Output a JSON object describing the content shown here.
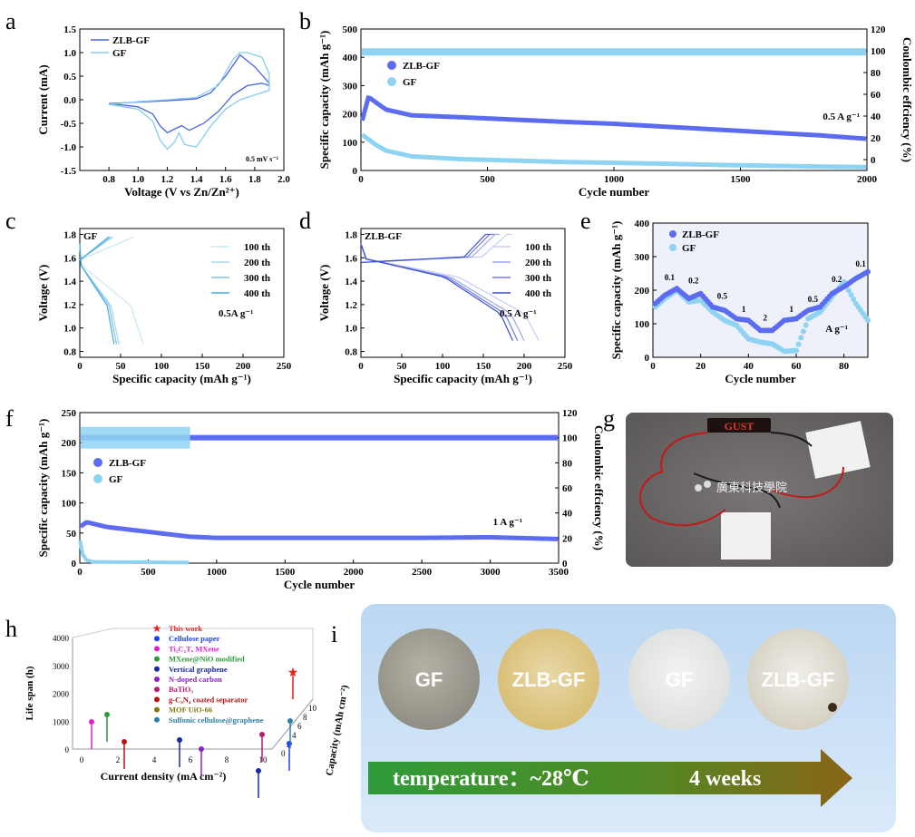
{
  "colors": {
    "zlb": "#4a64e6",
    "gf": "#86cdef",
    "zlb_dot": "#5b6cf0",
    "gf_dot": "#8fd3f2",
    "photo_bg": "#6e6a6a",
    "arrow_start": "#2f9b3a",
    "arrow_end": "#8a6418"
  },
  "panel_labels": {
    "a": "a",
    "b": "b",
    "c": "c",
    "d": "d",
    "e": "e",
    "f": "f",
    "g": "g",
    "h": "h",
    "i": "i"
  },
  "chart_data": [
    {
      "panel": "a",
      "type": "line",
      "xlabel": "Voltage (V vs Zn/Zn²⁺)",
      "ylabel": "Current (mA)",
      "xlim": [
        0.6,
        2.0
      ],
      "ylim": [
        -1.5,
        1.5
      ],
      "xticks": [
        "0.8",
        "1.0",
        "1.2",
        "1.4",
        "1.6",
        "1.8",
        "2.0"
      ],
      "yticks": [
        "-1.5",
        "-1.0",
        "-0.5",
        "0.0",
        "0.5",
        "1.0",
        "1.5"
      ],
      "annotation": "0.5 mV s⁻¹",
      "series": [
        {
          "name": "ZLB-GF",
          "x": [
            0.8,
            1.0,
            1.1,
            1.15,
            1.2,
            1.25,
            1.3,
            1.35,
            1.45,
            1.55,
            1.65,
            1.75,
            1.85,
            1.9,
            1.9,
            1.8,
            1.7,
            1.6,
            1.5,
            1.4,
            1.2,
            1.0,
            0.8
          ],
          "y": [
            -0.08,
            -0.15,
            -0.3,
            -0.55,
            -0.7,
            -0.62,
            -0.55,
            -0.65,
            -0.5,
            -0.25,
            0.1,
            0.3,
            0.35,
            0.3,
            0.35,
            0.7,
            0.95,
            0.5,
            0.15,
            0.02,
            -0.02,
            -0.05,
            -0.08
          ]
        },
        {
          "name": "GF",
          "x": [
            0.8,
            1.0,
            1.1,
            1.15,
            1.2,
            1.25,
            1.28,
            1.32,
            1.4,
            1.5,
            1.6,
            1.7,
            1.8,
            1.9,
            1.9,
            1.85,
            1.75,
            1.7,
            1.65,
            1.55,
            1.4,
            1.2,
            1.0,
            0.8
          ],
          "y": [
            -0.1,
            -0.2,
            -0.45,
            -0.85,
            -1.05,
            -0.9,
            -0.7,
            -0.95,
            -1.0,
            -0.55,
            -0.2,
            0.0,
            0.1,
            0.2,
            0.55,
            0.9,
            1.0,
            1.0,
            0.85,
            0.3,
            0.05,
            0.0,
            -0.04,
            -0.1
          ]
        }
      ]
    },
    {
      "panel": "b",
      "type": "scatter",
      "xlabel": "Cycle number",
      "ylabel": "Specific capacity (mAh g⁻¹)",
      "y2label": "Coulombic effciency (%)",
      "xlim": [
        0,
        2000
      ],
      "ylim": [
        0,
        500
      ],
      "y2lim": [
        -10,
        120
      ],
      "xticks": [
        "0",
        "500",
        "1000",
        "1500",
        "2000"
      ],
      "yticks": [
        "0",
        "100",
        "200",
        "300",
        "400",
        "500"
      ],
      "y2ticks": [
        "0",
        "20",
        "40",
        "60",
        "80",
        "100",
        "120"
      ],
      "annotation": "0.5 A g⁻¹",
      "series": [
        {
          "name": "ZLB-GF",
          "x": [
            0,
            30,
            60,
            100,
            200,
            400,
            600,
            800,
            1000,
            1200,
            1400,
            1600,
            1800,
            2000
          ],
          "y": [
            160,
            260,
            240,
            215,
            195,
            188,
            180,
            172,
            165,
            155,
            145,
            135,
            125,
            112
          ]
        },
        {
          "name": "GF",
          "x": [
            0,
            30,
            60,
            100,
            200,
            400,
            600,
            800,
            1000,
            1200,
            1400,
            1600,
            1800,
            2000
          ],
          "y": [
            130,
            110,
            90,
            70,
            50,
            40,
            35,
            30,
            27,
            24,
            20,
            17,
            14,
            12
          ]
        },
        {
          "name": "CE",
          "x": [
            0,
            2000
          ],
          "y": [
            99,
            99
          ]
        }
      ]
    },
    {
      "panel": "c",
      "type": "line",
      "xlabel": "Specific capacity (mAh g⁻¹)",
      "ylabel": "Voltage (V)",
      "xlim": [
        0,
        250
      ],
      "ylim": [
        0.75,
        1.85
      ],
      "xticks": [
        "0",
        "50",
        "100",
        "150",
        "200",
        "250"
      ],
      "yticks": [
        "0.8",
        "1.0",
        "1.2",
        "1.4",
        "1.6",
        "1.8"
      ],
      "title": "GF",
      "annotation": "0.5A g⁻¹",
      "legend": [
        "100 th",
        "200 th",
        "300 th",
        "400 th"
      ],
      "series_end_capacity": [
        78,
        48,
        45,
        42
      ]
    },
    {
      "panel": "d",
      "type": "line",
      "xlabel": "Specific capacity (mAh g⁻¹)",
      "ylabel": "Voltage (V)",
      "xlim": [
        0,
        250
      ],
      "ylim": [
        0.75,
        1.85
      ],
      "xticks": [
        "0",
        "50",
        "100",
        "150",
        "200",
        "250"
      ],
      "yticks": [
        "0.8",
        "1.0",
        "1.2",
        "1.4",
        "1.6",
        "1.8"
      ],
      "title": "ZLB-GF",
      "annotation": "0.5 A g⁻¹",
      "legend": [
        "100 th",
        "200 th",
        "300 th",
        "400 th"
      ],
      "series_end_capacity": [
        218,
        200,
        192,
        186
      ]
    },
    {
      "panel": "e",
      "type": "scatter",
      "xlabel": "Cycle number",
      "ylabel": "Specific capacity (mAh g⁻¹)",
      "xlim": [
        0,
        90
      ],
      "ylim": [
        0,
        400
      ],
      "xticks": [
        "0",
        "20",
        "40",
        "60",
        "80"
      ],
      "yticks": [
        "0",
        "100",
        "200",
        "300",
        "400"
      ],
      "rate_labels": [
        "0.1",
        "0.2",
        "0.5",
        "1",
        "2",
        "1",
        "0.5",
        "0.2",
        "0.1"
      ],
      "unit_label": "A g⁻¹",
      "series": [
        {
          "name": "ZLB-GF",
          "x": [
            1,
            5,
            10,
            15,
            20,
            25,
            30,
            35,
            40,
            45,
            50,
            55,
            60,
            65,
            70,
            75,
            80,
            85,
            90
          ],
          "y": [
            160,
            185,
            205,
            175,
            190,
            150,
            140,
            115,
            110,
            80,
            80,
            110,
            115,
            140,
            150,
            190,
            210,
            235,
            255
          ]
        },
        {
          "name": "GF",
          "x": [
            1,
            5,
            10,
            15,
            20,
            25,
            30,
            35,
            40,
            45,
            50,
            55,
            60,
            65,
            70,
            75,
            80,
            85,
            90
          ],
          "y": [
            150,
            175,
            200,
            165,
            170,
            135,
            110,
            95,
            55,
            45,
            40,
            18,
            20,
            115,
            135,
            180,
            225,
            160,
            110
          ]
        }
      ]
    },
    {
      "panel": "f",
      "type": "scatter",
      "xlabel": "Cycle number",
      "ylabel": "Specific capacity (mAh g⁻¹)",
      "y2label": "Coulombic effciency (%)",
      "xlim": [
        0,
        3500
      ],
      "ylim": [
        0,
        250
      ],
      "y2lim": [
        0,
        120
      ],
      "xticks": [
        "0",
        "500",
        "1000",
        "1500",
        "2000",
        "2500",
        "3000",
        "3500"
      ],
      "yticks": [
        "0",
        "50",
        "100",
        "150",
        "200",
        "250"
      ],
      "y2ticks": [
        "0",
        "20",
        "40",
        "60",
        "80",
        "100",
        "120"
      ],
      "annotation": "1 A g⁻¹",
      "series": [
        {
          "name": "ZLB-GF",
          "x": [
            0,
            50,
            200,
            500,
            800,
            1000,
            1500,
            2000,
            2500,
            3000,
            3500
          ],
          "y": [
            60,
            68,
            60,
            52,
            44,
            42,
            42,
            42,
            42,
            43,
            40
          ]
        },
        {
          "name": "GF",
          "x": [
            0,
            20,
            50,
            100,
            800
          ],
          "y": [
            40,
            15,
            5,
            2,
            1
          ]
        },
        {
          "name": "CE ZLB-GF",
          "x": [
            0,
            3500
          ],
          "y": [
            100,
            100
          ]
        },
        {
          "name": "CE GF",
          "x": [
            0,
            800
          ],
          "y": [
            95,
            95
          ]
        }
      ]
    },
    {
      "panel": "h",
      "type": "scatter",
      "xlabel": "Current density (mA cm⁻²)",
      "ylabel": "Life span (h)",
      "zlabel": "Capacity (mAh cm⁻²)",
      "yticks": [
        "0",
        "1000",
        "2000",
        "3000",
        "4000"
      ],
      "xticks": [
        "0",
        "2",
        "4",
        "6",
        "8",
        "10"
      ],
      "zticks": [
        "0",
        "2",
        "4",
        "6",
        "8",
        "10"
      ],
      "legend": [
        {
          "label": "This work",
          "color": "#e8211d",
          "marker": "star"
        },
        {
          "label": "Cellulose paper",
          "color": "#1f3fff",
          "marker": "dot"
        },
        {
          "label": "Ti₃C₂Tₓ MXene",
          "color": "#e020d8",
          "marker": "dot"
        },
        {
          "label": "MXene@NiO modified",
          "color": "#2e9b3a",
          "marker": "dot"
        },
        {
          "label": "Vertical graphene",
          "color": "#1a2aa0",
          "marker": "dot"
        },
        {
          "label": "N-doped carbon",
          "color": "#8a24c8",
          "marker": "dot"
        },
        {
          "label": "BaTiO₃",
          "color": "#b21e74",
          "marker": "dot"
        },
        {
          "label": "g-C₃N₄ coated separator",
          "color": "#b31515",
          "marker": "dot"
        },
        {
          "label": "MOF UiO-66",
          "color": "#7b7b10",
          "marker": "dot"
        },
        {
          "label": "Sulfonic cellulose@graphene",
          "color": "#2f7fa8",
          "marker": "dot"
        }
      ]
    }
  ],
  "photo_g": {
    "display_text": "GUST",
    "logo_text": "廣東科技學院"
  },
  "photo_i": {
    "discs": [
      "GF",
      "ZLB-GF",
      "GF",
      "ZLB-GF"
    ],
    "arrow_text": "temperature：~28℃",
    "arrow_text2": "4 weeks"
  }
}
